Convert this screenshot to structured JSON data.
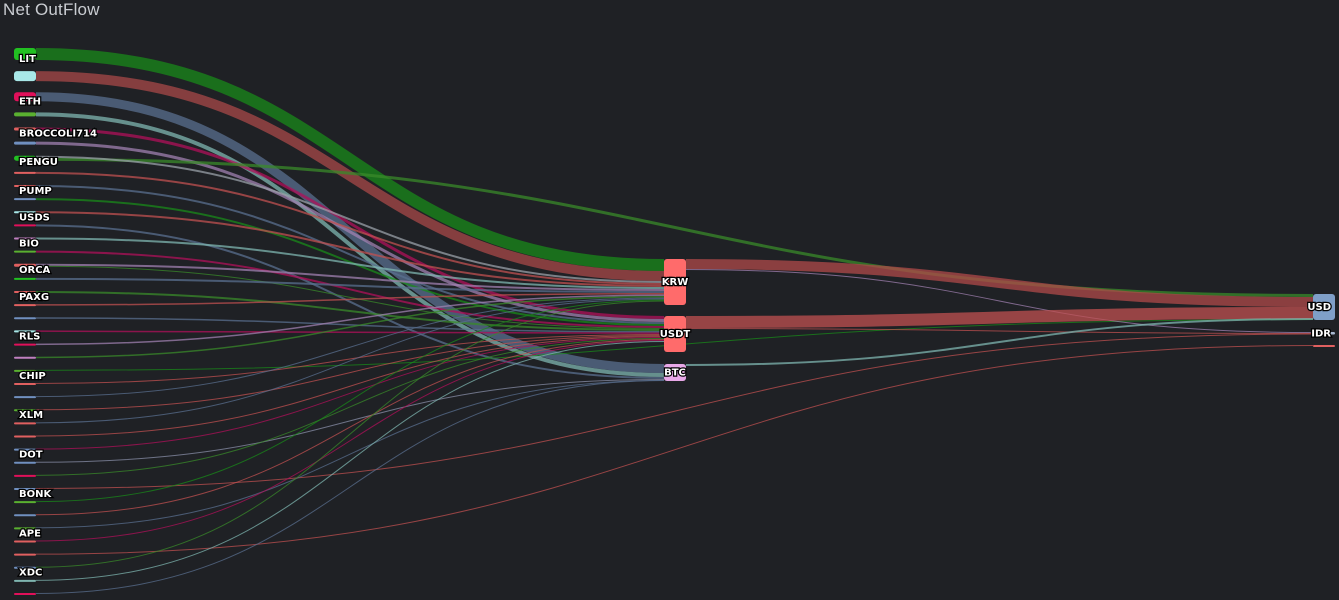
{
  "title": "Net OutFlow",
  "background": "#1f2125",
  "nodes": [
    {
      "name": "LIT",
      "color": "#22c022",
      "column": 0
    },
    {
      "name": "",
      "color": "#a8e8e8",
      "column": 0
    },
    {
      "name": "ETH",
      "color": "#e0105a",
      "column": 0
    },
    {
      "name": "",
      "color": "#5ab030",
      "column": 0
    },
    {
      "name": "BROCCOLI714",
      "color": "#e06060",
      "column": 0
    },
    {
      "name": "",
      "color": "#7090c0",
      "column": 0
    },
    {
      "name": "PENGU",
      "color": "#22c022",
      "column": 0
    },
    {
      "name": "",
      "color": "#e06060",
      "column": 0
    },
    {
      "name": "PUMP",
      "color": "#e06060",
      "column": 0
    },
    {
      "name": "",
      "color": "#7090c0",
      "column": 0
    },
    {
      "name": "USDS",
      "color": "#a8e8e8",
      "column": 0
    },
    {
      "name": "",
      "color": "#e0105a",
      "column": 0
    },
    {
      "name": "BIO",
      "color": "#c080c0",
      "column": 0
    },
    {
      "name": "",
      "color": "#5ab030",
      "column": 0
    },
    {
      "name": "ORCA",
      "color": "#e06060",
      "column": 0
    },
    {
      "name": "",
      "color": "#22c022",
      "column": 0
    },
    {
      "name": "PAXG",
      "color": "#e06060",
      "column": 0
    },
    {
      "name": "",
      "color": "#e06060",
      "column": 0
    },
    {
      "name": "",
      "color": "#7090c0",
      "column": 0
    },
    {
      "name": "RLS",
      "color": "#a8e8e8",
      "column": 0
    },
    {
      "name": "",
      "color": "#e0105a",
      "column": 0
    },
    {
      "name": "",
      "color": "#c080c0",
      "column": 0
    },
    {
      "name": "CHIP",
      "color": "#5ab030",
      "column": 0
    },
    {
      "name": "",
      "color": "#e06060",
      "column": 0
    },
    {
      "name": "",
      "color": "#7090c0",
      "column": 0
    },
    {
      "name": "XLM",
      "color": "#5ab030",
      "column": 0
    },
    {
      "name": "",
      "color": "#e06060",
      "column": 0
    },
    {
      "name": "",
      "color": "#e06060",
      "column": 0
    },
    {
      "name": "DOT",
      "color": "#7090c0",
      "column": 0
    },
    {
      "name": "",
      "color": "#7090c0",
      "column": 0
    },
    {
      "name": "",
      "color": "#e0105a",
      "column": 0
    },
    {
      "name": "BONK",
      "color": "#7090c0",
      "column": 0
    },
    {
      "name": "",
      "color": "#5ab030",
      "column": 0
    },
    {
      "name": "",
      "color": "#7090c0",
      "column": 0
    },
    {
      "name": "APE",
      "color": "#5ab030",
      "column": 0
    },
    {
      "name": "",
      "color": "#e06060",
      "column": 0
    },
    {
      "name": "",
      "color": "#e06060",
      "column": 0
    },
    {
      "name": "XDC",
      "color": "#7090c0",
      "column": 0
    },
    {
      "name": "",
      "color": "#7fb5b0",
      "column": 0
    },
    {
      "name": "",
      "color": "#e0105a",
      "column": 0
    },
    {
      "name": "KRW",
      "color": "#ff6b6b",
      "column": 1
    },
    {
      "name": "USDT",
      "color": "#ff6b6b",
      "column": 1
    },
    {
      "name": "BTC",
      "color": "#e8a8e8",
      "column": 1
    },
    {
      "name": "USD",
      "color": "#7f9fc8",
      "column": 2
    },
    {
      "name": "IDR",
      "color": "#a8b8d0",
      "column": 2
    },
    {
      "name": "",
      "color": "#e06060",
      "column": 2
    }
  ],
  "links": [
    {
      "source": 0,
      "target": 40,
      "value": 12,
      "color": "#1a8a1a"
    },
    {
      "source": 1,
      "target": 40,
      "value": 10,
      "color": "#a84848"
    },
    {
      "source": 2,
      "target": 42,
      "value": 9,
      "color": "#5a6f8f"
    },
    {
      "source": 3,
      "target": 42,
      "value": 4,
      "color": "#7fb5b0"
    },
    {
      "source": 4,
      "target": 41,
      "value": 3,
      "color": "#b0105a"
    },
    {
      "source": 5,
      "target": 41,
      "value": 3,
      "color": "#a080b0"
    },
    {
      "source": 6,
      "target": 43,
      "value": 3,
      "color": "#3a8a2a"
    },
    {
      "source": 6,
      "target": 40,
      "value": 2,
      "color": "#9aa0a8"
    },
    {
      "source": 7,
      "target": 40,
      "value": 2,
      "color": "#c05050"
    },
    {
      "source": 8,
      "target": 41,
      "value": 2,
      "color": "#5a6f8f"
    },
    {
      "source": 9,
      "target": 41,
      "value": 2,
      "color": "#1a8a1a"
    },
    {
      "source": 10,
      "target": 40,
      "value": 2,
      "color": "#c05050"
    },
    {
      "source": 11,
      "target": 42,
      "value": 2,
      "color": "#5a6f8f"
    },
    {
      "source": 12,
      "target": 40,
      "value": 2,
      "color": "#7fb5b0"
    },
    {
      "source": 13,
      "target": 41,
      "value": 2,
      "color": "#b0105a"
    },
    {
      "source": 14,
      "target": 40,
      "value": 2,
      "color": "#a080b0"
    },
    {
      "source": 14,
      "target": 41,
      "value": 1,
      "color": "#3a8a2a"
    },
    {
      "source": 15,
      "target": 40,
      "value": 2,
      "color": "#5a6f8f"
    },
    {
      "source": 16,
      "target": 41,
      "value": 2,
      "color": "#3a8a2a"
    },
    {
      "source": 17,
      "target": 40,
      "value": 1.5,
      "color": "#c05050"
    },
    {
      "source": 18,
      "target": 41,
      "value": 1.5,
      "color": "#5a6f8f"
    },
    {
      "source": 19,
      "target": 41,
      "value": 1.5,
      "color": "#b0105a"
    },
    {
      "source": 20,
      "target": 40,
      "value": 1.5,
      "color": "#a080b0"
    },
    {
      "source": 21,
      "target": 40,
      "value": 1.5,
      "color": "#3a8a2a"
    },
    {
      "source": 22,
      "target": 43,
      "value": 1,
      "color": "#1a8a1a"
    },
    {
      "source": 23,
      "target": 41,
      "value": 1,
      "color": "#c05050"
    },
    {
      "source": 24,
      "target": 40,
      "value": 1,
      "color": "#5a6f8f"
    },
    {
      "source": 25,
      "target": 41,
      "value": 1,
      "color": "#c05050"
    },
    {
      "source": 26,
      "target": 40,
      "value": 1,
      "color": "#5a6f8f"
    },
    {
      "source": 27,
      "target": 41,
      "value": 1,
      "color": "#c05050"
    },
    {
      "source": 28,
      "target": 41,
      "value": 1,
      "color": "#b0105a"
    },
    {
      "source": 29,
      "target": 42,
      "value": 1,
      "color": "#8a8fa8"
    },
    {
      "source": 30,
      "target": 41,
      "value": 1,
      "color": "#3a8a2a"
    },
    {
      "source": 31,
      "target": 44,
      "value": 1,
      "color": "#c05050"
    },
    {
      "source": 32,
      "target": 40,
      "value": 1,
      "color": "#1a8a1a"
    },
    {
      "source": 33,
      "target": 41,
      "value": 1,
      "color": "#c05050"
    },
    {
      "source": 34,
      "target": 42,
      "value": 1,
      "color": "#5a6f8f"
    },
    {
      "source": 35,
      "target": 41,
      "value": 1,
      "color": "#b0105a"
    },
    {
      "source": 36,
      "target": 45,
      "value": 1,
      "color": "#c05050"
    },
    {
      "source": 37,
      "target": 40,
      "value": 1,
      "color": "#3a8a2a"
    },
    {
      "source": 38,
      "target": 41,
      "value": 1,
      "color": "#7fb5b0"
    },
    {
      "source": 39,
      "target": 42,
      "value": 1,
      "color": "#5a6f8f"
    },
    {
      "source": 40,
      "target": 43,
      "value": 10,
      "color": "#b04a4a"
    },
    {
      "source": 40,
      "target": 44,
      "value": 1,
      "color": "#a080b0"
    },
    {
      "source": 41,
      "target": 43,
      "value": 12,
      "color": "#c05050"
    },
    {
      "source": 41,
      "target": 44,
      "value": 1,
      "color": "#c05050"
    },
    {
      "source": 42,
      "target": 43,
      "value": 2,
      "color": "#7fb5b0"
    }
  ]
}
